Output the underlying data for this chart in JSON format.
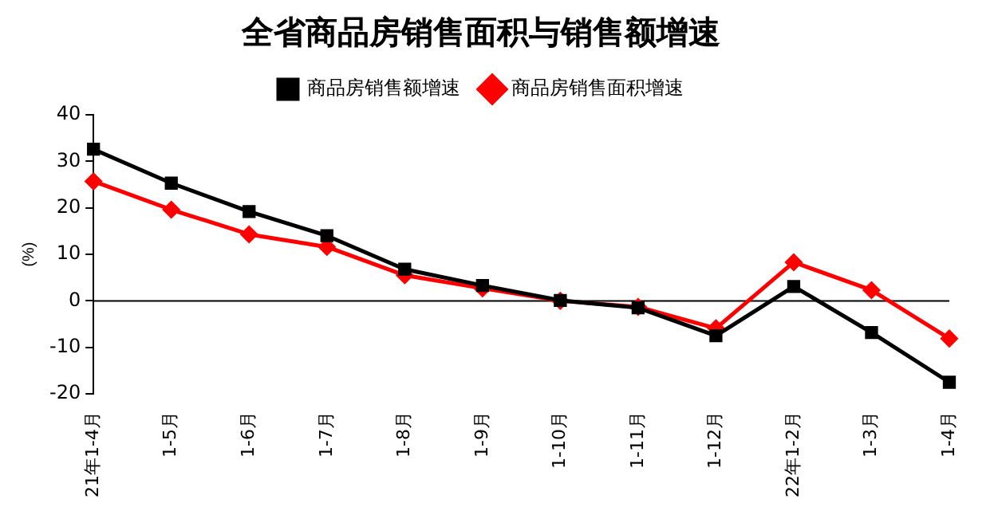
{
  "chart_data": {
    "type": "line",
    "title": "全省商品房销售面积与销售额增速",
    "ylabel": "(%)",
    "categories": [
      "21年1-4月",
      "1-5月",
      "1-6月",
      "1-7月",
      "1-8月",
      "1-9月",
      "1-10月",
      "1-11月",
      "1-12月",
      "22年1-2月",
      "1-3月",
      "1-4月"
    ],
    "series": [
      {
        "name": "商品房销售面积增速",
        "color": "#ff0000",
        "marker": "diamond",
        "values": [
          25.7,
          19.6,
          14.3,
          11.6,
          5.5,
          2.7,
          0,
          -1.3,
          -5.9,
          8.3,
          2.3,
          -8.1
        ]
      },
      {
        "name": "商品房销售额增速",
        "color": "#000000",
        "marker": "square",
        "values": [
          32.6,
          25.3,
          19.2,
          14.0,
          6.8,
          3.3,
          0.1,
          -1.5,
          -7.5,
          3.1,
          -6.8,
          -17.5
        ]
      }
    ],
    "ylim": [
      -20,
      40
    ],
    "yticks": [
      -20,
      -10,
      0,
      10,
      20,
      30,
      40
    ],
    "legend": "top",
    "grid": false,
    "ref_lines": [
      {
        "axis": "y",
        "value": 0,
        "color": "#000000"
      }
    ],
    "line_style": "solid"
  }
}
